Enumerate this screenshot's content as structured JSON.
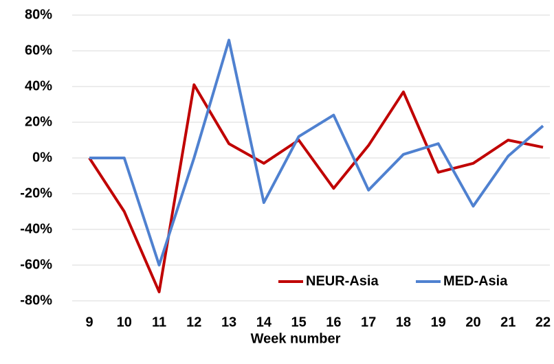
{
  "chart_data": {
    "type": "line",
    "x_label": "Week number",
    "categories": [
      "9",
      "10",
      "11",
      "12",
      "13",
      "14",
      "15",
      "16",
      "17",
      "18",
      "19",
      "20",
      "21",
      "22"
    ],
    "series": [
      {
        "name": "NEUR-Asia",
        "color": "#c00000",
        "values": [
          0,
          -30,
          -75,
          41,
          8,
          -3,
          10,
          -17,
          7,
          37,
          -8,
          -3,
          10,
          6
        ]
      },
      {
        "name": "MED-Asia",
        "color": "#4f81d0",
        "values": [
          0,
          0,
          -60,
          0,
          66,
          -25,
          12,
          24,
          -18,
          2,
          8,
          -27,
          1,
          18
        ]
      }
    ],
    "ylim": [
      -80,
      80
    ],
    "yticks": [
      {
        "value": -80,
        "label": "-80%"
      },
      {
        "value": -60,
        "label": "-60%"
      },
      {
        "value": -40,
        "label": "-40%"
      },
      {
        "value": -20,
        "label": "-20%"
      },
      {
        "value": 0,
        "label": "0%"
      },
      {
        "value": 20,
        "label": "20%"
      },
      {
        "value": 40,
        "label": "40%"
      },
      {
        "value": 60,
        "label": "60%"
      },
      {
        "value": 80,
        "label": "80%"
      }
    ],
    "grid": true,
    "legend": "lower right"
  }
}
